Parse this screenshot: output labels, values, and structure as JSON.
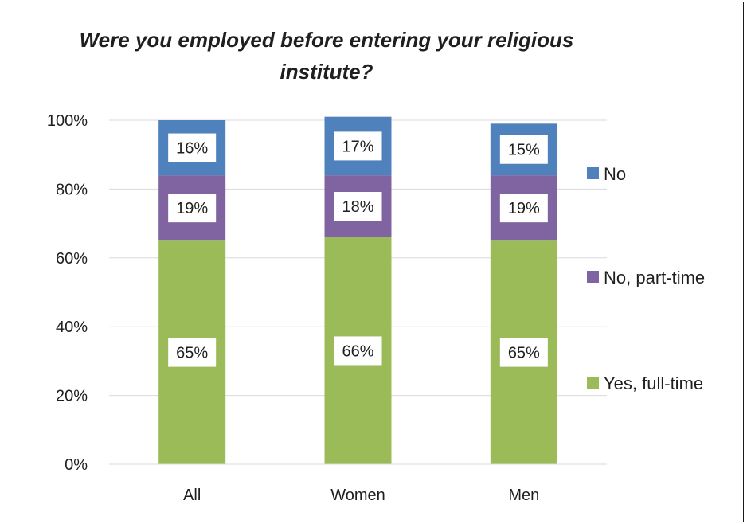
{
  "chart_data": {
    "type": "bar",
    "stacked": true,
    "title": "Were you employed before entering your religious institute?",
    "categories": [
      "All",
      "Women",
      "Men"
    ],
    "series": [
      {
        "name": "Yes, full-time",
        "values": [
          65,
          66,
          65
        ],
        "labels": [
          "65%",
          "66%",
          "65%"
        ],
        "color": "#9BBB59"
      },
      {
        "name": "No, part-time",
        "values": [
          19,
          18,
          19
        ],
        "labels": [
          "19%",
          "18%",
          "19%"
        ],
        "color": "#8064A2"
      },
      {
        "name": "No",
        "values": [
          16,
          17,
          15
        ],
        "labels": [
          "16%",
          "17%",
          "15%"
        ],
        "color": "#4F81BD"
      }
    ],
    "ylim": [
      0,
      100
    ],
    "y_ticks": [
      "0%",
      "20%",
      "40%",
      "60%",
      "80%",
      "100%"
    ],
    "grid": true,
    "legend_position": "right",
    "legend_order": [
      "No",
      "No, part-time",
      "Yes, full-time"
    ]
  }
}
